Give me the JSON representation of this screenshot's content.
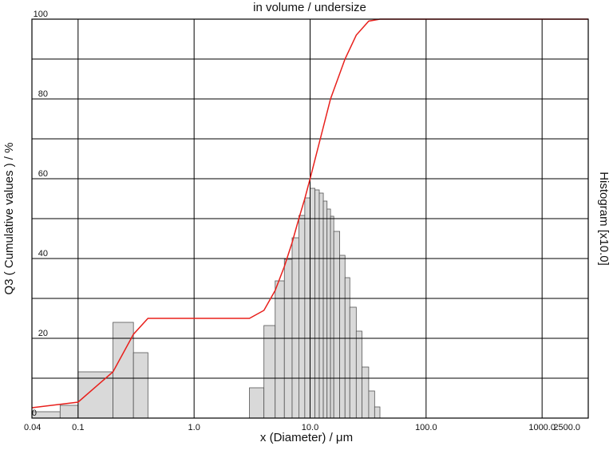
{
  "chart_data": {
    "type": "histogram",
    "title": "in volume / undersize",
    "xlabel": "x (Diameter) / μm",
    "ylabel": "Q3 ( Cumulative values ) / %",
    "y2label": "Histogram [x10.0]",
    "xscale": "log",
    "xlim": [
      0.04,
      2500
    ],
    "ylim": [
      0,
      100
    ],
    "xticks": [
      0.04,
      0.1,
      {
        "value": 1,
        "label": "1.0"
      },
      {
        "value": 10,
        "label": "10.0"
      },
      {
        "value": 100,
        "label": "100.0"
      },
      {
        "value": 1000,
        "label": "1000.0"
      },
      {
        "value": 2500,
        "label": "2500.0"
      }
    ],
    "yticks": [
      0,
      20,
      40,
      60,
      80,
      100
    ],
    "grid": true,
    "color": "#d9d9d9",
    "bins": [
      0.04,
      0.07,
      0.1,
      0.2,
      0.3,
      0.4,
      3,
      4,
      5,
      6,
      7,
      8,
      9,
      10,
      11,
      12,
      13,
      14,
      15,
      16,
      18,
      20,
      22,
      25,
      28,
      32,
      36,
      40
    ],
    "values": [
      1.6,
      3.2,
      11.6,
      24,
      16.4,
      0,
      7.6,
      23.2,
      34.4,
      39.8,
      45.2,
      50.8,
      55.2,
      57.6,
      57.2,
      56.4,
      54.4,
      52.4,
      50.6,
      46.8,
      40.8,
      35.2,
      27.8,
      21.8,
      12.8,
      6.8,
      2.8
    ],
    "cumulative": {
      "type": "line",
      "color": "#e8201c",
      "x": [
        0.04,
        0.1,
        0.2,
        0.3,
        0.4,
        3,
        4,
        5,
        6,
        7,
        8,
        9,
        10,
        12,
        15,
        20,
        25,
        32,
        40,
        2500
      ],
      "values": [
        2.6,
        4,
        11.6,
        21,
        25,
        25,
        27,
        32,
        38,
        44,
        50,
        55,
        60,
        69,
        80,
        90,
        96,
        99.5,
        100,
        100
      ]
    }
  }
}
